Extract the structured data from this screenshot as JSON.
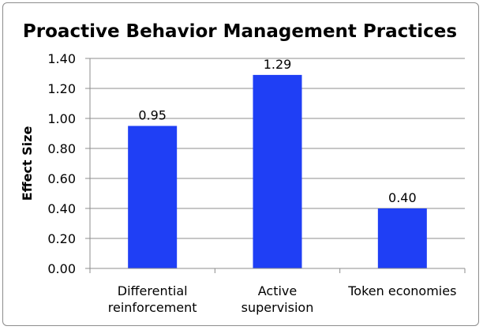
{
  "chart_data": {
    "type": "bar",
    "title": "Proactive Behavior Management Practices",
    "ylabel": "Effect Size",
    "xlabel": "",
    "categories": [
      [
        "Differential",
        "reinforcement"
      ],
      [
        "Active",
        "supervision"
      ],
      [
        "Token economies"
      ]
    ],
    "values": [
      0.95,
      1.29,
      0.4
    ],
    "data_labels": [
      "0.95",
      "1.29",
      "0.40"
    ],
    "yticks": [
      "0.00",
      "0.20",
      "0.40",
      "0.60",
      "0.80",
      "1.00",
      "1.20",
      "1.40"
    ],
    "ylim": [
      0,
      1.4
    ],
    "grid": true,
    "legend": "none",
    "bar_color": "#1f3ff5"
  }
}
